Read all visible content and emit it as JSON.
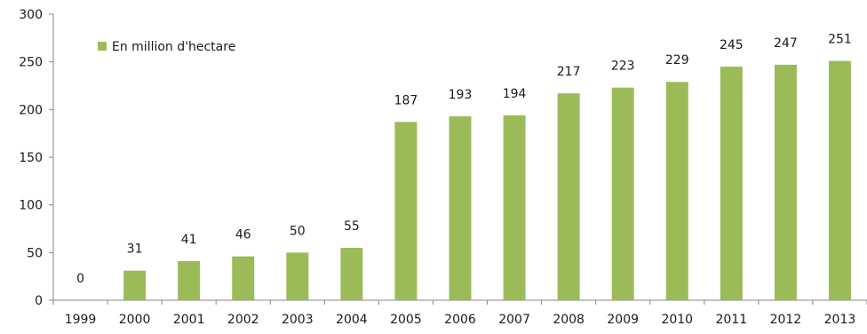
{
  "chart_data": {
    "type": "bar",
    "categories": [
      "1999",
      "2000",
      "2001",
      "2002",
      "2003",
      "2004",
      "2005",
      "2006",
      "2007",
      "2008",
      "2009",
      "2010",
      "2011",
      "2012",
      "2013"
    ],
    "series": [
      {
        "name": "En million d'hectare",
        "values": [
          0,
          31,
          41,
          46,
          50,
          55,
          187,
          193,
          194,
          217,
          223,
          229,
          245,
          247,
          251
        ],
        "color": "#9bbb59"
      }
    ],
    "y_ticks": [
      0,
      50,
      100,
      150,
      200,
      250,
      300
    ],
    "ylim": [
      0,
      300
    ],
    "grid": false,
    "legend_position": "top-left",
    "data_labels": true
  }
}
